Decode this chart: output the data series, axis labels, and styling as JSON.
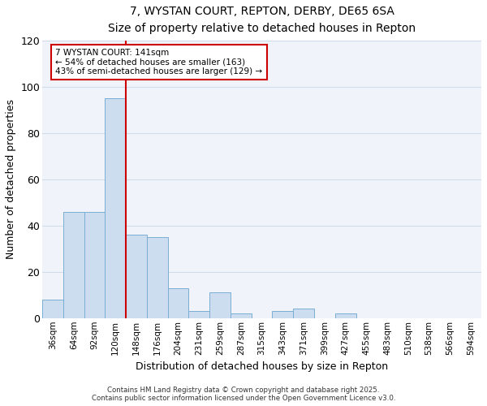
{
  "title1": "7, WYSTAN COURT, REPTON, DERBY, DE65 6SA",
  "title2": "Size of property relative to detached houses in Repton",
  "xlabel": "Distribution of detached houses by size in Repton",
  "ylabel": "Number of detached properties",
  "categories": [
    "36sqm",
    "64sqm",
    "92sqm",
    "120sqm",
    "148sqm",
    "176sqm",
    "204sqm",
    "231sqm",
    "259sqm",
    "287sqm",
    "315sqm",
    "343sqm",
    "371sqm",
    "399sqm",
    "427sqm",
    "455sqm",
    "483sqm",
    "510sqm",
    "538sqm",
    "566sqm",
    "594sqm"
  ],
  "values": [
    8,
    46,
    46,
    95,
    36,
    35,
    13,
    3,
    11,
    2,
    0,
    3,
    4,
    0,
    2,
    0,
    0,
    0,
    0,
    0,
    0
  ],
  "bar_color": "#ccddf0",
  "bar_edge_color": "#7aadd4",
  "red_line_x": 3.5,
  "ylim": [
    0,
    120
  ],
  "yticks": [
    0,
    20,
    40,
    60,
    80,
    100,
    120
  ],
  "annotation_line1": "7 WYSTAN COURT: 141sqm",
  "annotation_line2": "← 54% of detached houses are smaller (163)",
  "annotation_line3": "43% of semi-detached houses are larger (129) →",
  "annotation_box_facecolor": "#ffffff",
  "annotation_box_edgecolor": "#cc0000",
  "footer_line1": "Contains HM Land Registry data © Crown copyright and database right 2025.",
  "footer_line2": "Contains public sector information licensed under the Open Government Licence v3.0.",
  "background_color": "#ffffff",
  "plot_bg_color": "#f0f4fa",
  "grid_color": "#d0daea"
}
